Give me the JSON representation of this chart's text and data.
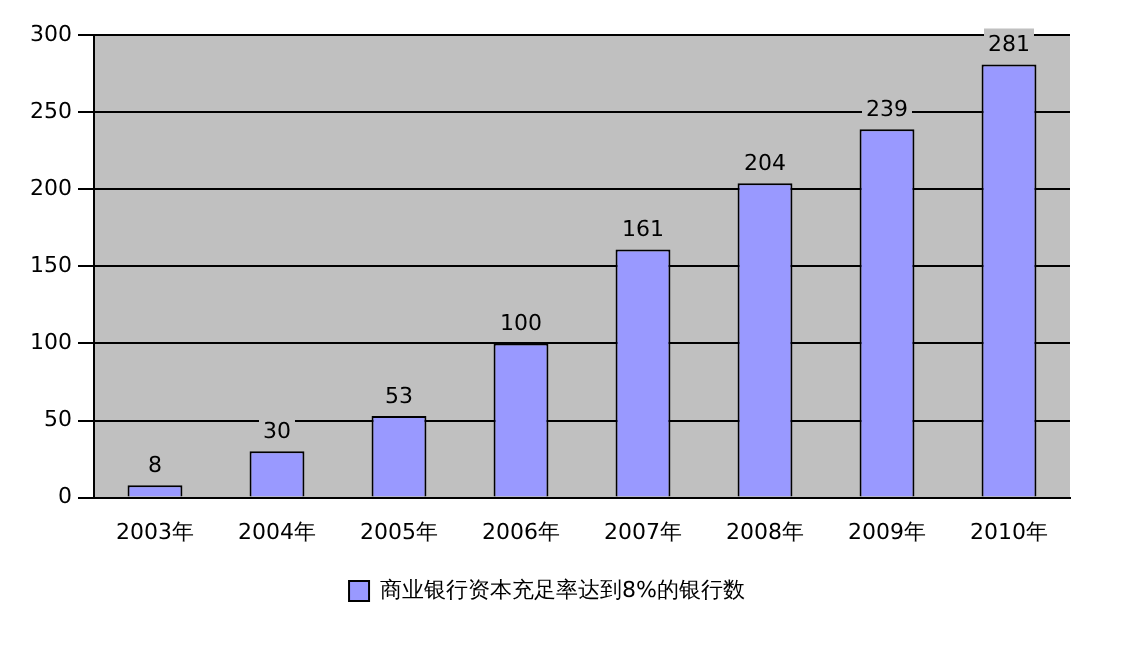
{
  "chart_data": {
    "type": "bar",
    "categories": [
      "2003年",
      "2004年",
      "2005年",
      "2006年",
      "2007年",
      "2008年",
      "2009年",
      "2010年"
    ],
    "series": [
      {
        "name": "商业银行资本充足率达到8%的银行数",
        "color": "#9999ff",
        "values": [
          8,
          30,
          53,
          100,
          161,
          204,
          239,
          281
        ]
      }
    ],
    "ylim": [
      0,
      300
    ],
    "yticks": [
      0,
      50,
      100,
      150,
      200,
      250,
      300
    ],
    "grid": "y",
    "legend": "bottom",
    "data_labels": true
  }
}
